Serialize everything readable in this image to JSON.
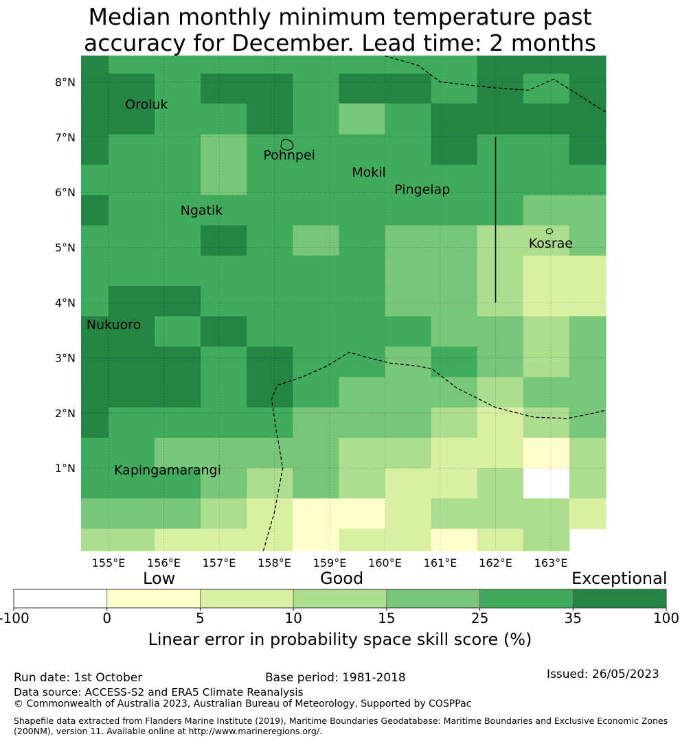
{
  "title_lines": [
    "Median monthly minimum temperature past",
    "accuracy for December. Lead time: 2 months"
  ],
  "map": {
    "lon_range": [
      154.5,
      163.5
    ],
    "lat_range": [
      -0.5,
      8.5
    ],
    "lon_ticks": [
      "155°E",
      "156°E",
      "157°E",
      "158°E",
      "159°E",
      "160°E",
      "161°E",
      "162°E",
      "163°E"
    ],
    "lat_ticks": [
      "8°N",
      "7°N",
      "6°N",
      "5°N",
      "4°N",
      "3°N",
      "2°N",
      "1°N"
    ],
    "grid_cols": [
      [
        154.5,
        155
      ],
      [
        155,
        155.833
      ],
      [
        155.833,
        156.667
      ],
      [
        156.667,
        157.5
      ],
      [
        157.5,
        158.333
      ],
      [
        158.333,
        159.167
      ],
      [
        159.167,
        160
      ],
      [
        160,
        160.833
      ],
      [
        160.833,
        161.667
      ],
      [
        161.667,
        162.5
      ],
      [
        162.5,
        163.333
      ],
      [
        163.333,
        164
      ]
    ],
    "grid_rows": [
      [
        8.5,
        8.15
      ],
      [
        8.15,
        7.61
      ],
      [
        7.61,
        7.05
      ],
      [
        7.05,
        6.5
      ],
      [
        6.5,
        5.95
      ],
      [
        5.95,
        5.4
      ],
      [
        5.4,
        4.85
      ],
      [
        4.85,
        4.3
      ],
      [
        4.3,
        3.75
      ],
      [
        3.75,
        3.2
      ],
      [
        3.2,
        2.65
      ],
      [
        2.65,
        2.1
      ],
      [
        2.1,
        1.55
      ],
      [
        1.55,
        1
      ],
      [
        1,
        0.45
      ],
      [
        0.45,
        -0.1
      ],
      [
        -0.1,
        -0.5
      ]
    ],
    "grid_classes": [
      [
        6,
        5,
        5,
        5,
        5,
        5,
        5,
        5,
        5,
        6,
        6,
        6
      ],
      [
        6,
        6,
        5,
        6,
        6,
        5,
        6,
        6,
        5,
        6,
        5,
        6
      ],
      [
        6,
        6,
        5,
        5,
        6,
        5,
        4,
        5,
        6,
        6,
        6,
        6
      ],
      [
        6,
        5,
        5,
        4,
        5,
        5,
        5,
        5,
        6,
        5,
        5,
        6
      ],
      [
        5,
        5,
        5,
        4,
        5,
        5,
        5,
        5,
        5,
        5,
        5,
        5
      ],
      [
        6,
        5,
        5,
        5,
        5,
        5,
        5,
        5,
        5,
        5,
        4,
        4
      ],
      [
        5,
        5,
        5,
        6,
        5,
        4,
        5,
        4,
        4,
        3,
        3,
        4
      ],
      [
        5,
        5,
        5,
        5,
        5,
        5,
        5,
        4,
        4,
        3,
        2,
        2
      ],
      [
        5,
        6,
        6,
        5,
        5,
        5,
        5,
        4,
        4,
        3,
        2,
        2
      ],
      [
        6,
        6,
        5,
        6,
        5,
        5,
        5,
        5,
        4,
        4,
        3,
        4
      ],
      [
        6,
        6,
        6,
        5,
        6,
        5,
        5,
        4,
        5,
        4,
        3,
        4
      ],
      [
        6,
        6,
        6,
        5,
        6,
        5,
        4,
        4,
        4,
        3,
        4,
        4
      ],
      [
        6,
        5,
        5,
        5,
        5,
        4,
        4,
        4,
        3,
        2,
        3,
        4
      ],
      [
        5,
        5,
        4,
        4,
        4,
        4,
        3,
        3,
        2,
        2,
        1,
        3
      ],
      [
        5,
        5,
        5,
        4,
        3,
        4,
        3,
        2,
        2,
        3,
        0,
        3
      ],
      [
        4,
        4,
        4,
        3,
        2,
        1,
        1,
        2,
        3,
        3,
        3,
        2
      ],
      [
        3,
        3,
        2,
        2,
        2,
        1,
        2,
        2,
        1,
        2,
        3,
        -1
      ]
    ],
    "places": [
      {
        "name": "Oroluk",
        "lon": 155.3,
        "lat": 7.6
      },
      {
        "name": "Pohnpei",
        "lon": 157.8,
        "lat": 6.68
      },
      {
        "name": "Mokil",
        "lon": 159.4,
        "lat": 6.37
      },
      {
        "name": "Pingelap",
        "lon": 160.17,
        "lat": 6.06
      },
      {
        "name": "Ngatik",
        "lon": 156.3,
        "lat": 5.68
      },
      {
        "name": "Kosrae",
        "lon": 162.6,
        "lat": 5.08
      },
      {
        "name": "Nukuoro",
        "lon": 154.6,
        "lat": 3.61
      },
      {
        "name": "Kapingamarangi",
        "lon": 155.1,
        "lat": 0.97
      }
    ],
    "boundary_lines": [
      [
        [
          159.9,
          8.5
        ],
        [
          160.6,
          8.3
        ],
        [
          161.0,
          8.0
        ],
        [
          161.9,
          7.9
        ],
        [
          162.6,
          7.85
        ],
        [
          163.05,
          8.05
        ],
        [
          163.6,
          7.7
        ],
        [
          164,
          7.45
        ]
      ],
      [
        [
          157.8,
          -0.5
        ],
        [
          158.0,
          0.2
        ],
        [
          158.15,
          1.0
        ],
        [
          158.0,
          1.9
        ],
        [
          157.95,
          2.25
        ],
        [
          158.05,
          2.5
        ],
        [
          158.5,
          2.65
        ],
        [
          158.95,
          2.85
        ],
        [
          159.35,
          3.1
        ],
        [
          159.7,
          3.0
        ],
        [
          160.1,
          2.9
        ],
        [
          160.6,
          2.85
        ],
        [
          160.85,
          2.8
        ],
        [
          161.3,
          2.45
        ],
        [
          162,
          2.1
        ],
        [
          162.7,
          1.92
        ],
        [
          163.3,
          1.9
        ],
        [
          163.7,
          1.98
        ],
        [
          164,
          2.05
        ]
      ]
    ],
    "vertical_line": {
      "lon": 162.0,
      "lat_top": 7.0,
      "lat_bottom": 4.0
    }
  },
  "colorbar": {
    "category_labels": [
      "Low",
      "Good",
      "Exceptional"
    ],
    "ticks": [
      "-100",
      "0",
      "5",
      "10",
      "15",
      "25",
      "35",
      "100"
    ],
    "colors": [
      "#ffffff",
      "#ffffcc",
      "#d9f0a3",
      "#addd8e",
      "#78c679",
      "#41ab5d",
      "#238443"
    ],
    "title": "Linear error in probability space skill score (%)"
  },
  "footer": {
    "run_date": "Run date: 1st October",
    "base_period": "Base period: 1981-2018",
    "issued": "Issued: 26/05/2023",
    "data_source": "Data source: ACCESS-S2 and ERA5 Climate Reanalysis",
    "copyright": "© Commonwealth of Australia 2023, Australian Bureau of Meteorology, Supported by COSPPac",
    "shapefile": "Shapefile data extracted from Flanders Marine Institute (2019), Maritime Boundaries Geodatabase: Maritime Boundaries and Exclusive Economic Zones (200NM), version 11. Available online at http://www.marineregions.org/."
  }
}
